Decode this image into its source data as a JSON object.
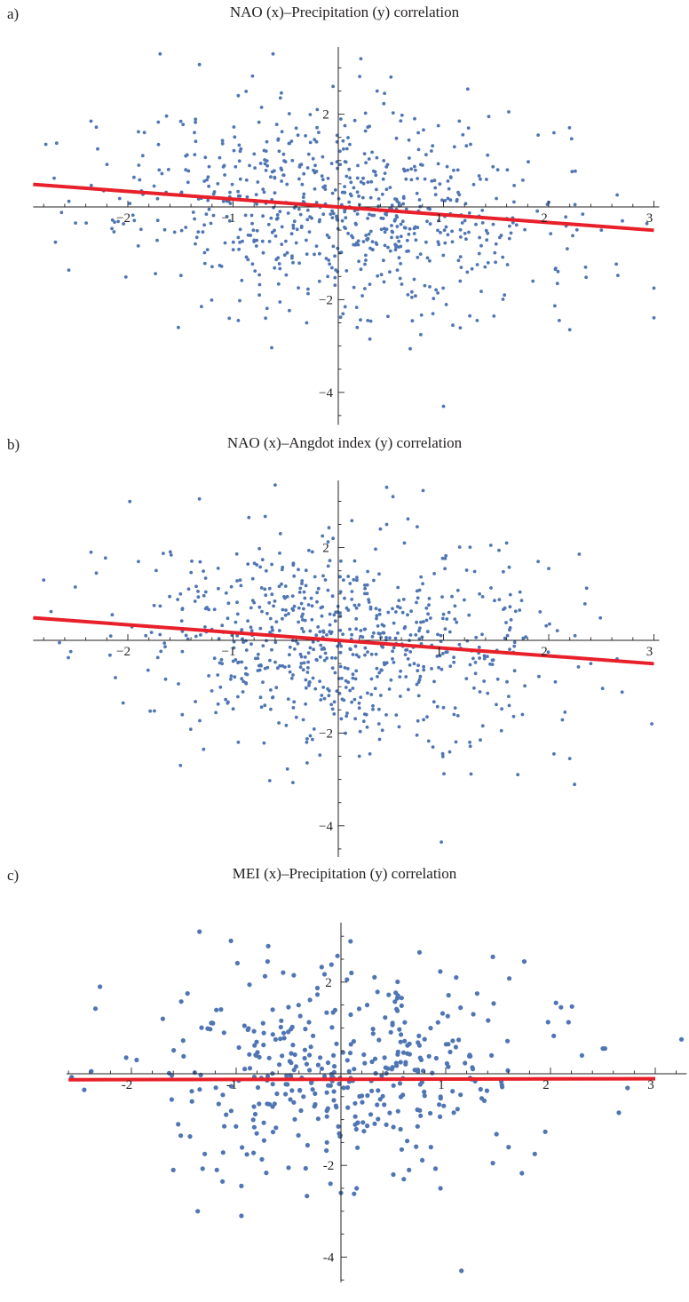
{
  "panels": [
    {
      "tag": "a)",
      "title": "NAO (x)–Precipitation (y) correlation"
    },
    {
      "tag": "b)",
      "title": "NAO (x)–Angdot index (y) correlation"
    },
    {
      "tag": "c)",
      "title": "MEI (x)–Precipitation (y) correlation"
    }
  ],
  "chart_data": [
    {
      "type": "scatter",
      "title": "NAO (x)–Precipitation (y) correlation",
      "xlabel": "",
      "ylabel": "",
      "xlim": [
        -2.9,
        3.05
      ],
      "ylim": [
        -4.7,
        3.45
      ],
      "xticks": [
        -2,
        -1,
        1,
        2,
        3
      ],
      "yticks": [
        2,
        -2,
        -4
      ],
      "xtick_labels": [
        "−2",
        "−1",
        "1",
        "2",
        "3"
      ],
      "ytick_labels": [
        "2",
        "−2",
        "−4"
      ],
      "grid": false,
      "legend": "none",
      "colors": {
        "points": "#4f75b3",
        "fit": "#e8202a",
        "axes": "#231f20"
      },
      "series": [
        {
          "n": 700,
          "sx": 1.0,
          "sy": 1.1,
          "seed": 11
        }
      ],
      "points": [
        [
          -2.78,
          1.35
        ],
        [
          -2.7,
          0.62
        ],
        [
          -2.63,
          -0.12
        ],
        [
          -2.56,
          0.12
        ],
        [
          -2.35,
          1.85
        ],
        [
          -2.3,
          1.72
        ],
        [
          -2.23,
          0.35
        ],
        [
          -1.9,
          1.62
        ],
        [
          -1.75,
          0.45
        ],
        [
          -1.52,
          -2.6
        ],
        [
          -1.45,
          1.1
        ],
        [
          -1.45,
          0.8
        ],
        [
          -1.32,
          3.07
        ],
        [
          -1.3,
          -2.15
        ],
        [
          -0.95,
          -2.45
        ],
        [
          -0.95,
          2.4
        ],
        [
          -0.75,
          -1.9
        ],
        [
          -0.62,
          3.3
        ],
        [
          -0.55,
          2.35
        ],
        [
          -0.4,
          1.7
        ],
        [
          -0.3,
          -2.5
        ],
        [
          -0.2,
          2.1
        ],
        [
          -0.1,
          -1.5
        ],
        [
          -0.05,
          2.6
        ],
        [
          0.05,
          1.25
        ],
        [
          0.18,
          -2.6
        ],
        [
          0.28,
          -2.45
        ],
        [
          0.3,
          -2.85
        ],
        [
          0.37,
          2.5
        ],
        [
          0.44,
          2.45
        ],
        [
          0.5,
          2.8
        ],
        [
          0.7,
          -1.95
        ],
        [
          0.76,
          1.6
        ],
        [
          0.8,
          0.9
        ],
        [
          0.9,
          -2.3
        ],
        [
          1.0,
          -4.3
        ],
        [
          1.15,
          1.85
        ],
        [
          1.25,
          -2.35
        ],
        [
          1.32,
          -2.45
        ],
        [
          1.35,
          0.6
        ],
        [
          1.43,
          1.95
        ],
        [
          1.5,
          -0.8
        ],
        [
          1.58,
          -1.9
        ],
        [
          1.62,
          2.05
        ],
        [
          1.85,
          -1.6
        ],
        [
          1.9,
          1.55
        ],
        [
          2.0,
          0.1
        ],
        [
          2.05,
          1.6
        ],
        [
          2.1,
          -2.45
        ],
        [
          2.2,
          -2.65
        ],
        [
          2.25,
          0.05
        ],
        [
          2.35,
          -1.3
        ],
        [
          2.5,
          -0.5
        ],
        [
          2.7,
          -0.3
        ],
        [
          3.0,
          -1.75
        ]
      ],
      "fit": {
        "slope": -0.168,
        "intercept": 0.0,
        "x_range": [
          -2.9,
          3.0
        ]
      }
    },
    {
      "type": "scatter",
      "title": "NAO (x)–Angdot index (y) correlation",
      "xlabel": "",
      "ylabel": "",
      "xlim": [
        -2.9,
        3.05
      ],
      "ylim": [
        -4.7,
        3.45
      ],
      "xticks": [
        -2,
        -1,
        1,
        2,
        3
      ],
      "yticks": [
        2,
        -2,
        -4
      ],
      "xtick_labels": [
        "−2",
        "−1",
        "1",
        "2",
        "3"
      ],
      "ytick_labels": [
        "2",
        "−2",
        "−4"
      ],
      "grid": false,
      "legend": "none",
      "colors": {
        "points": "#4f75b3",
        "fit": "#e8202a",
        "axes": "#231f20"
      },
      "series": [
        {
          "n": 700,
          "sx": 1.0,
          "sy": 1.1,
          "seed": 29
        }
      ],
      "points": [
        [
          -2.8,
          1.3
        ],
        [
          -2.73,
          0.62
        ],
        [
          -2.65,
          -0.05
        ],
        [
          -2.5,
          1.15
        ],
        [
          -2.35,
          1.9
        ],
        [
          -2.3,
          1.45
        ],
        [
          -1.9,
          1.7
        ],
        [
          -1.75,
          0.75
        ],
        [
          -1.5,
          -2.7
        ],
        [
          -1.5,
          1.0
        ],
        [
          -1.32,
          3.05
        ],
        [
          -1.28,
          -2.35
        ],
        [
          -0.95,
          -2.2
        ],
        [
          -0.85,
          2.65
        ],
        [
          -0.6,
          3.35
        ],
        [
          -0.55,
          2.3
        ],
        [
          -0.3,
          -2.2
        ],
        [
          -0.15,
          2.25
        ],
        [
          -0.05,
          2.2
        ],
        [
          0.05,
          1.3
        ],
        [
          0.2,
          -2.5
        ],
        [
          0.3,
          -2.45
        ],
        [
          0.4,
          2.4
        ],
        [
          0.46,
          2.5
        ],
        [
          0.52,
          3.1
        ],
        [
          0.75,
          2.45
        ],
        [
          0.9,
          -2.3
        ],
        [
          0.98,
          -4.35
        ],
        [
          1.1,
          -1.6
        ],
        [
          1.25,
          -2.2
        ],
        [
          1.35,
          -2.15
        ],
        [
          1.45,
          2.05
        ],
        [
          1.55,
          -1.95
        ],
        [
          1.6,
          2.1
        ],
        [
          1.75,
          -1.6
        ],
        [
          1.9,
          1.7
        ],
        [
          2.0,
          1.55
        ],
        [
          2.05,
          -2.45
        ],
        [
          2.2,
          -2.55
        ],
        [
          2.25,
          0.1
        ],
        [
          2.4,
          -0.5
        ],
        [
          2.65,
          -0.4
        ],
        [
          2.98,
          -1.8
        ]
      ],
      "fit": {
        "slope": -0.168,
        "intercept": 0.0,
        "x_range": [
          -2.9,
          3.0
        ]
      }
    },
    {
      "type": "scatter",
      "title": "MEI (x)–Precipitation (y) correlation",
      "xlabel": "",
      "ylabel": "",
      "xlim": [
        -2.62,
        3.3
      ],
      "ylim": [
        -4.55,
        3.3
      ],
      "xticks": [
        -2,
        -1,
        1,
        2,
        3
      ],
      "yticks": [
        2,
        -2,
        -4
      ],
      "xtick_labels": [
        "-2",
        "-1",
        "1",
        "2",
        "3"
      ],
      "ytick_labels": [
        "2",
        "-2",
        "-4"
      ],
      "grid": false,
      "legend": "none",
      "colors": {
        "points": "#4f75b3",
        "fit": "#e8202a",
        "axes": "#231f20"
      },
      "series": [
        {
          "n": 380,
          "sx": 0.9,
          "sy": 1.0,
          "seed": 47
        }
      ],
      "points": [
        [
          -2.45,
          -0.35
        ],
        [
          -2.3,
          1.9
        ],
        [
          -2.05,
          0.35
        ],
        [
          -1.95,
          0.3
        ],
        [
          -1.7,
          1.2
        ],
        [
          -1.6,
          -2.1
        ],
        [
          -1.35,
          3.1
        ],
        [
          -1.3,
          -1.75
        ],
        [
          -1.05,
          2.9
        ],
        [
          -0.95,
          -2.45
        ],
        [
          -0.95,
          -3.1
        ],
        [
          -0.7,
          2.45
        ],
        [
          -0.5,
          -2.05
        ],
        [
          -0.45,
          2.15
        ],
        [
          -0.1,
          -2.4
        ],
        [
          0.0,
          -2.6
        ],
        [
          0.1,
          2.2
        ],
        [
          0.15,
          -2.5
        ],
        [
          0.25,
          1.5
        ],
        [
          0.5,
          -2.2
        ],
        [
          0.6,
          -2.3
        ],
        [
          0.65,
          -2.1
        ],
        [
          0.75,
          2.65
        ],
        [
          0.95,
          -2.5
        ],
        [
          1.1,
          2.1
        ],
        [
          1.15,
          -4.3
        ],
        [
          1.3,
          1.75
        ],
        [
          1.45,
          2.55
        ],
        [
          1.45,
          -1.95
        ],
        [
          1.6,
          -1.6
        ],
        [
          1.75,
          2.45
        ],
        [
          1.85,
          -1.75
        ],
        [
          2.1,
          1.45
        ],
        [
          2.3,
          0.4
        ],
        [
          2.5,
          0.55
        ],
        [
          2.52,
          0.55
        ],
        [
          3.25,
          0.75
        ]
      ],
      "fit": {
        "slope": 0.004,
        "intercept": -0.12,
        "x_range": [
          -2.6,
          3.0
        ]
      }
    }
  ]
}
